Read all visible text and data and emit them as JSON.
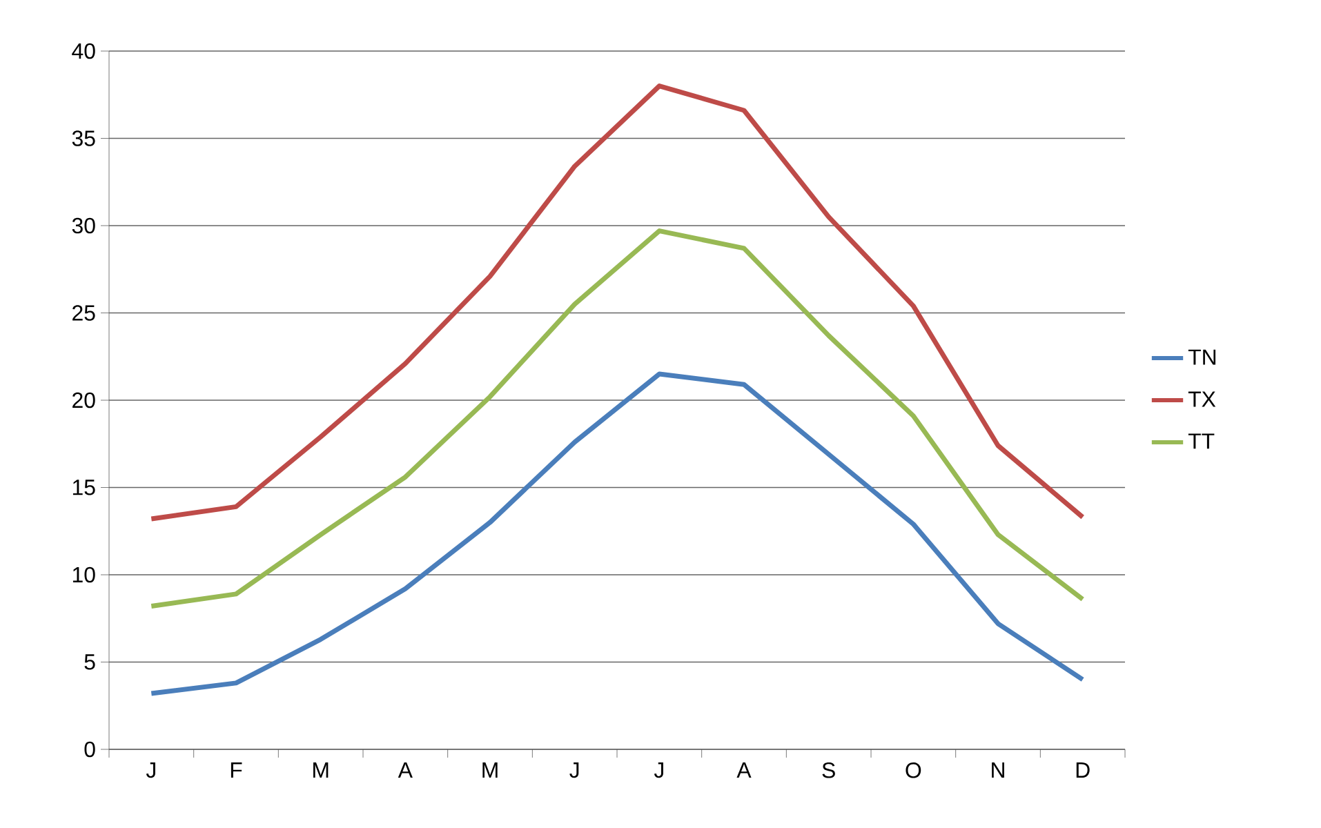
{
  "chart_data": {
    "type": "line",
    "categories": [
      "J",
      "F",
      "M",
      "A",
      "M",
      "J",
      "J",
      "A",
      "S",
      "O",
      "N",
      "D"
    ],
    "series": [
      {
        "name": "TN",
        "color": "#4a7ebb",
        "values": [
          3.2,
          3.8,
          6.3,
          9.2,
          13.0,
          17.6,
          21.5,
          20.9,
          16.9,
          12.9,
          7.2,
          4.0
        ]
      },
      {
        "name": "TX",
        "color": "#be4b48",
        "values": [
          13.2,
          13.9,
          17.9,
          22.1,
          27.1,
          33.4,
          38.0,
          36.6,
          30.5,
          25.4,
          17.4,
          13.3
        ]
      },
      {
        "name": "TT",
        "color": "#98b954",
        "values": [
          8.2,
          8.9,
          12.3,
          15.6,
          20.2,
          25.5,
          29.7,
          28.7,
          23.7,
          19.1,
          12.3,
          8.6
        ]
      }
    ],
    "ylim": [
      0,
      40
    ],
    "yticks": [
      0,
      5,
      10,
      15,
      20,
      25,
      30,
      35,
      40
    ],
    "grid": "y",
    "legend": "right",
    "marker": "none",
    "line_style": "solid"
  }
}
